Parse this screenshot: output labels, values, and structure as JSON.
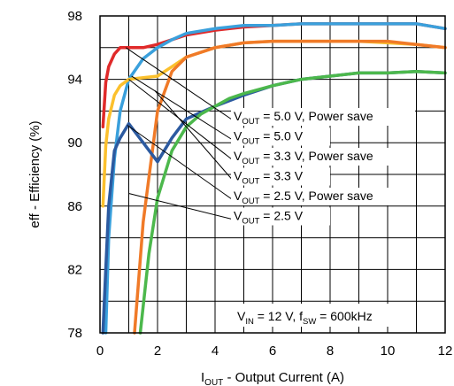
{
  "chart_data": {
    "type": "line",
    "xlabel": {
      "main": "I",
      "sub": "OUT",
      "rest": " - Output Current (A)"
    },
    "ylabel": "eff - Efficiency (%)",
    "xlim": [
      0,
      12
    ],
    "ylim": [
      78,
      98
    ],
    "xticks": [
      0,
      2,
      4,
      6,
      8,
      10,
      12
    ],
    "yticks": [
      78,
      82,
      86,
      90,
      94,
      98
    ],
    "grid": true,
    "series": [
      {
        "name": "V_OUT = 5.0 V, Power save",
        "color": "#e02a2a",
        "x": [
          0.1,
          0.2,
          0.3,
          0.5,
          0.7,
          1.0,
          1.5,
          2.0,
          3.0,
          4.0,
          5.0,
          6.0,
          7.0,
          8.0,
          9.0,
          10.0,
          11.0,
          12.0
        ],
        "y": [
          91.0,
          93.8,
          94.8,
          95.6,
          96.0,
          96.0,
          96.0,
          96.2,
          96.8,
          97.1,
          97.3,
          97.4,
          97.5,
          97.5,
          97.5,
          97.5,
          97.5,
          97.2
        ]
      },
      {
        "name": "V_OUT = 5.0 V",
        "color": "#3aa0dc",
        "x": [
          0.2,
          0.3,
          0.5,
          0.7,
          1.0,
          1.5,
          2.0,
          2.5,
          3.0,
          4.0,
          5.0,
          6.0,
          7.0,
          8.0,
          9.0,
          10.0,
          11.0,
          12.0
        ],
        "y": [
          78.0,
          84.0,
          89.0,
          92.0,
          94.0,
          95.3,
          96.0,
          96.5,
          96.9,
          97.2,
          97.4,
          97.4,
          97.5,
          97.5,
          97.5,
          97.5,
          97.5,
          97.2
        ]
      },
      {
        "name": "V_OUT = 3.3 V, Power save",
        "color": "#fbc02d",
        "x": [
          0.1,
          0.2,
          0.3,
          0.5,
          0.7,
          1.0,
          1.5,
          2.0,
          2.5,
          3.0,
          4.0,
          5.0,
          6.0,
          7.0,
          8.0,
          9.0,
          10.0,
          11.0,
          12.0
        ],
        "y": [
          86.0,
          89.8,
          91.5,
          93.0,
          93.6,
          94.0,
          94.1,
          94.2,
          94.8,
          95.4,
          96.0,
          96.3,
          96.4,
          96.4,
          96.4,
          96.4,
          96.3,
          96.2,
          96.0
        ]
      },
      {
        "name": "V_OUT = 3.3 V",
        "color": "#f07a28",
        "x": [
          1.2,
          1.5,
          2.0,
          2.5,
          3.0,
          4.0,
          5.0,
          6.0,
          7.0,
          8.0,
          9.0,
          10.0,
          11.0,
          12.0
        ],
        "y": [
          78.0,
          85.0,
          92.0,
          94.5,
          95.4,
          96.0,
          96.3,
          96.4,
          96.4,
          96.4,
          96.4,
          96.4,
          96.2,
          96.0
        ]
      },
      {
        "name": "V_OUT = 2.5 V, Power save",
        "color": "#2c5aa0",
        "x": [
          0.1,
          0.2,
          0.3,
          0.5,
          0.7,
          1.0,
          1.5,
          2.0,
          2.5,
          3.0,
          4.0,
          5.0,
          6.0,
          7.0,
          8.0,
          9.0,
          10.0,
          11.0,
          12.0
        ],
        "y": [
          78.0,
          82.0,
          86.0,
          89.5,
          90.3,
          91.2,
          90.0,
          88.8,
          90.3,
          91.5,
          92.3,
          93.0,
          93.6,
          94.0,
          94.2,
          94.4,
          94.4,
          94.5,
          94.4
        ]
      },
      {
        "name": "V_OUT = 2.5 V",
        "color": "#4cb84c",
        "x": [
          1.4,
          1.7,
          2.0,
          2.5,
          3.0,
          3.5,
          4.0,
          4.5,
          5.0,
          6.0,
          7.0,
          8.0,
          9.0,
          10.0,
          11.0,
          12.0
        ],
        "y": [
          78.0,
          83.0,
          86.5,
          89.5,
          91.0,
          91.8,
          92.3,
          92.8,
          93.1,
          93.6,
          94.0,
          94.2,
          94.4,
          94.4,
          94.5,
          94.4
        ]
      }
    ],
    "annotations": [
      {
        "parts": [
          [
            "V",
            ""
          ],
          [
            "OUT",
            "sub"
          ],
          [
            " = 5.0 V, Power save",
            ""
          ]
        ]
      },
      {
        "parts": [
          [
            "V",
            ""
          ],
          [
            "OUT",
            "sub"
          ],
          [
            " = 5.0 V",
            ""
          ]
        ]
      },
      {
        "parts": [
          [
            "V",
            ""
          ],
          [
            "OUT",
            "sub"
          ],
          [
            " = 3.3 V, Power save",
            ""
          ]
        ]
      },
      {
        "parts": [
          [
            "V",
            ""
          ],
          [
            "OUT",
            "sub"
          ],
          [
            " = 3.3 V",
            ""
          ]
        ]
      },
      {
        "parts": [
          [
            "V",
            ""
          ],
          [
            "OUT",
            "sub"
          ],
          [
            " = 2.5 V, Power save",
            ""
          ]
        ]
      },
      {
        "parts": [
          [
            "V",
            ""
          ],
          [
            "OUT",
            "sub"
          ],
          [
            " = 2.5 V",
            ""
          ]
        ]
      }
    ],
    "conditions": {
      "parts": [
        [
          "V",
          ""
        ],
        [
          "IN",
          "sub"
        ],
        [
          " = 12 V, f",
          ""
        ],
        [
          "SW",
          "sub"
        ],
        [
          " = 600kHz",
          ""
        ]
      ]
    }
  }
}
